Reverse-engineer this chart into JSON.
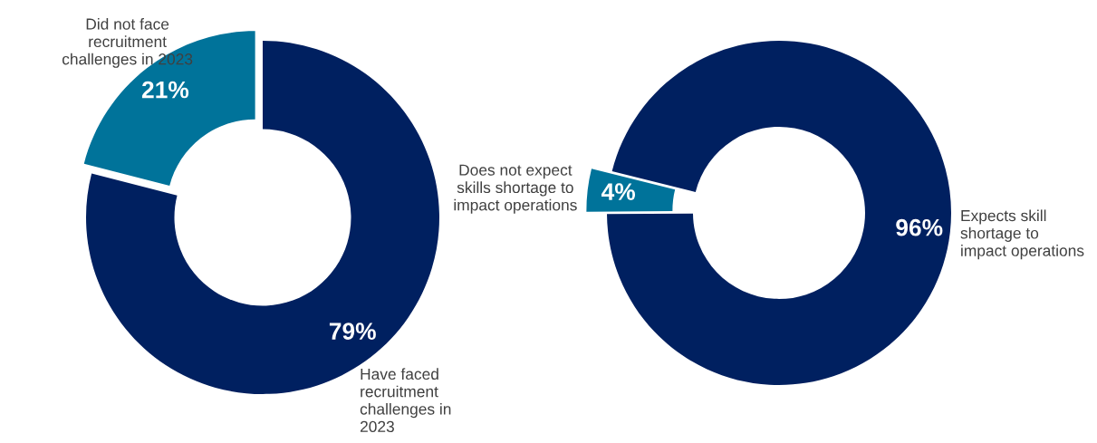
{
  "chart_data": [
    {
      "type": "donut",
      "categories": [
        "Have faced recruitment challenges in 2023",
        "Did not face recruitment challenges in 2023"
      ],
      "values": [
        79,
        21
      ],
      "value_labels": [
        "79%",
        "21%"
      ],
      "colors": [
        "#002060",
        "#00739a"
      ]
    },
    {
      "type": "donut",
      "categories": [
        "Expects skill shortage to impact operations",
        "Does not expect skills shortage to impact operations"
      ],
      "values": [
        96,
        4
      ],
      "value_labels": [
        "96%",
        "4%"
      ],
      "colors": [
        "#002060",
        "#00739a"
      ]
    }
  ]
}
